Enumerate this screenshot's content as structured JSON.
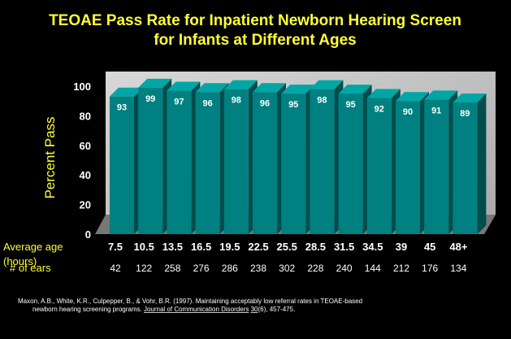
{
  "chart_data": {
    "type": "bar",
    "title_line1": "TEOAE Pass Rate for Inpatient Newborn Hearing Screen",
    "title_line2": "for Infants at Different Ages",
    "ylabel": "Percent Pass",
    "ylim": [
      0,
      100
    ],
    "yticks": [
      "0",
      "20",
      "40",
      "60",
      "80",
      "100"
    ],
    "categories": [
      "7.5",
      "10.5",
      "13.5",
      "16.5",
      "19.5",
      "22.5",
      "25.5",
      "28.5",
      "31.5",
      "34.5",
      "39",
      "45",
      "48+"
    ],
    "values": [
      93,
      99,
      97,
      96,
      98,
      96,
      95,
      98,
      95,
      92,
      90,
      91,
      89
    ],
    "value_labels": [
      "93",
      "99",
      "97",
      "96",
      "98",
      "96",
      "95",
      "98",
      "95",
      "92",
      "90",
      "91",
      "89"
    ],
    "row_label_age": "Average age",
    "row_label_hours": "(hours)",
    "row_label_ears": "# of ears",
    "ears": [
      "42",
      "122",
      "258",
      "276",
      "286",
      "238",
      "302",
      "228",
      "240",
      "144",
      "212",
      "176",
      "134"
    ],
    "bar_color": "#008080",
    "grid": false,
    "legend": "none"
  },
  "citation": {
    "line1": "Maxon, A.B., White, K.R., Culpepper, B., & Vohr, B.R. (1997).  Maintaining acceptably low referral rates in TEOAE-based",
    "line2_pre": "newborn hearing screening programs.  ",
    "journal": "Journal of Communication Disorders",
    "volume": "30",
    "line2_post": "(6), 457-475."
  }
}
